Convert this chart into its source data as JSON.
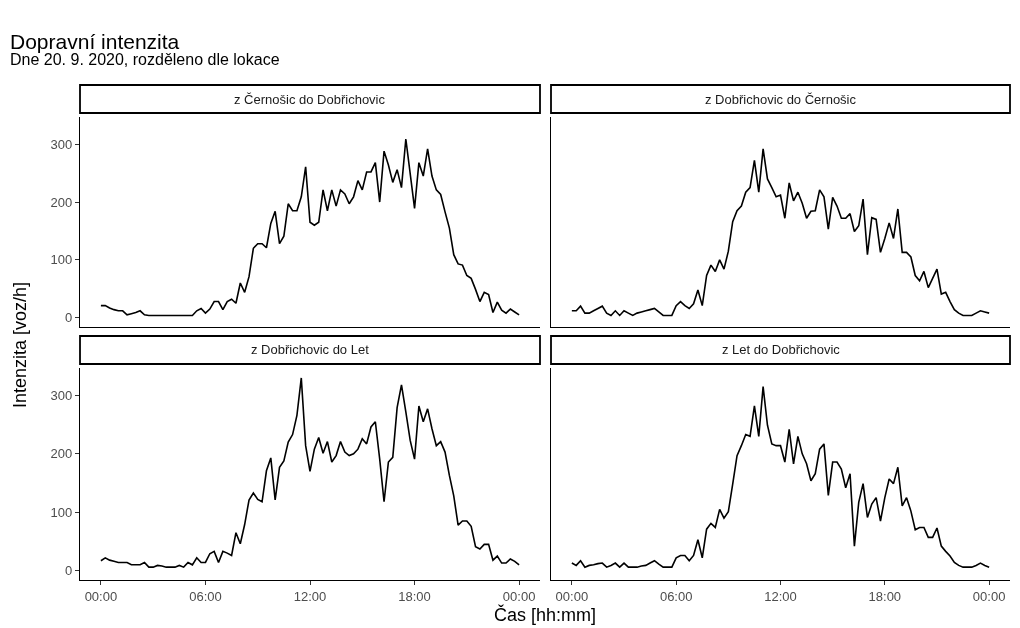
{
  "chart_data": [
    {
      "type": "other",
      "title": "Dopravní intenzita",
      "subtitle": "Dne 20. 9. 2020, rozděleno dle lokace",
      "xlabel": "Čas [hh:mm]",
      "ylabel": "Intenzita [voz/h]"
    },
    {
      "type": "line",
      "title": "z Černošic do Dobřichovic",
      "tick_labels": "y",
      "xlim": [
        -1.2,
        25.2
      ],
      "ylim": [
        -16,
        347
      ],
      "xticks": [
        {
          "value": 0,
          "label": null
        },
        {
          "value": 6,
          "label": null
        },
        {
          "value": 12,
          "label": null
        },
        {
          "value": 18,
          "label": null
        },
        {
          "value": 24,
          "label": null
        }
      ],
      "yticks": [
        0,
        100,
        200,
        300
      ],
      "x": [
        0,
        0.25,
        0.5,
        0.75,
        1,
        1.25,
        1.5,
        1.75,
        2,
        2.25,
        2.5,
        2.75,
        3,
        3.25,
        3.5,
        3.75,
        4,
        4.25,
        4.5,
        4.75,
        5,
        5.25,
        5.5,
        5.75,
        6,
        6.25,
        6.5,
        6.75,
        7,
        7.25,
        7.5,
        7.75,
        8,
        8.25,
        8.5,
        8.75,
        9,
        9.25,
        9.5,
        9.75,
        10,
        10.25,
        10.5,
        10.75,
        11,
        11.25,
        11.5,
        11.75,
        12,
        12.25,
        12.5,
        12.75,
        13,
        13.25,
        13.5,
        13.75,
        14,
        14.25,
        14.5,
        14.75,
        15,
        15.25,
        15.5,
        15.75,
        16,
        16.25,
        16.5,
        16.75,
        17,
        17.25,
        17.5,
        17.75,
        18,
        18.25,
        18.5,
        18.75,
        19,
        19.25,
        19.5,
        19.75,
        20,
        20.25,
        20.5,
        20.75,
        21,
        21.25,
        21.5,
        21.75,
        22,
        22.25,
        22.5,
        22.75,
        23,
        23.25,
        23.5,
        23.75,
        24
      ],
      "series": [
        {
          "color": "#000000",
          "values": [
            21,
            21,
            17,
            14,
            12,
            12,
            5,
            7,
            9,
            12,
            5,
            4,
            4,
            4,
            4,
            4,
            4,
            4,
            4,
            4,
            4,
            4,
            12,
            16,
            8,
            15,
            28,
            28,
            14,
            28,
            32,
            25,
            60,
            44,
            71,
            120,
            128,
            128,
            121,
            163,
            184,
            128,
            141,
            197,
            185,
            185,
            209,
            261,
            165,
            160,
            165,
            221,
            185,
            221,
            193,
            221,
            214,
            197,
            209,
            237,
            221,
            252,
            252,
            268,
            200,
            288,
            264,
            234,
            256,
            225,
            309,
            249,
            189,
            268,
            245,
            292,
            245,
            221,
            213,
            183,
            155,
            109,
            93,
            91,
            73,
            68,
            49,
            28,
            44,
            40,
            9,
            27,
            13,
            8,
            15,
            10,
            5
          ]
        }
      ]
    },
    {
      "type": "line",
      "title": "z Dobřichovic do Černošic",
      "tick_labels": false,
      "xlim": [
        -1.2,
        25.2
      ],
      "ylim": [
        -16,
        347
      ],
      "xticks": [
        {
          "value": 0,
          "label": null
        },
        {
          "value": 6,
          "label": null
        },
        {
          "value": 12,
          "label": null
        },
        {
          "value": 18,
          "label": null
        },
        {
          "value": 24,
          "label": null
        }
      ],
      "yticks": [
        0,
        100,
        200,
        300
      ],
      "x": [
        0,
        0.25,
        0.5,
        0.75,
        1,
        1.25,
        1.5,
        1.75,
        2,
        2.25,
        2.5,
        2.75,
        3,
        3.25,
        3.5,
        3.75,
        4,
        4.25,
        4.5,
        4.75,
        5,
        5.25,
        5.5,
        5.75,
        6,
        6.25,
        6.5,
        6.75,
        7,
        7.25,
        7.5,
        7.75,
        8,
        8.25,
        8.5,
        8.75,
        9,
        9.25,
        9.5,
        9.75,
        10,
        10.25,
        10.5,
        10.75,
        11,
        11.25,
        11.5,
        11.75,
        12,
        12.25,
        12.5,
        12.75,
        13,
        13.25,
        13.5,
        13.75,
        14,
        14.25,
        14.5,
        14.75,
        15,
        15.25,
        15.5,
        15.75,
        16,
        16.25,
        16.5,
        16.75,
        17,
        17.25,
        17.5,
        17.75,
        18,
        18.25,
        18.5,
        18.75,
        19,
        19.25,
        19.5,
        19.75,
        20,
        20.25,
        20.5,
        20.75,
        21,
        21.25,
        21.5,
        21.75,
        22,
        22.25,
        22.5,
        22.75,
        23,
        23.25,
        23.5,
        23.75,
        24
      ],
      "series": [
        {
          "color": "#000000",
          "values": [
            12,
            12,
            20,
            8,
            8,
            12,
            16,
            20,
            8,
            4,
            12,
            4,
            12,
            8,
            4,
            8,
            10,
            12,
            14,
            16,
            10,
            4,
            4,
            4,
            21,
            28,
            21,
            16,
            24,
            48,
            21,
            73,
            91,
            80,
            100,
            84,
            115,
            166,
            185,
            193,
            217,
            225,
            272,
            217,
            292,
            240,
            225,
            209,
            212,
            172,
            233,
            202,
            217,
            198,
            172,
            184,
            185,
            221,
            209,
            153,
            208,
            193,
            172,
            172,
            180,
            149,
            159,
            205,
            109,
            173,
            170,
            113,
            137,
            164,
            137,
            188,
            113,
            113,
            105,
            73,
            64,
            80,
            52,
            68,
            84,
            41,
            44,
            28,
            14,
            8,
            4,
            4,
            4,
            8,
            12,
            10,
            8
          ]
        }
      ]
    },
    {
      "type": "line",
      "title": "z Dobřichovic do Let",
      "xlim": [
        -1.2,
        25.2
      ],
      "ylim": [
        -16,
        347
      ],
      "xticks": [
        {
          "value": 0,
          "label": "00:00"
        },
        {
          "value": 6,
          "label": "06:00"
        },
        {
          "value": 12,
          "label": "12:00"
        },
        {
          "value": 18,
          "label": "18:00"
        },
        {
          "value": 24,
          "label": "00:00"
        }
      ],
      "yticks": [
        0,
        100,
        200,
        300
      ],
      "x": [
        0,
        0.25,
        0.5,
        0.75,
        1,
        1.25,
        1.5,
        1.75,
        2,
        2.25,
        2.5,
        2.75,
        3,
        3.25,
        3.5,
        3.75,
        4,
        4.25,
        4.5,
        4.75,
        5,
        5.25,
        5.5,
        5.75,
        6,
        6.25,
        6.5,
        6.75,
        7,
        7.25,
        7.5,
        7.75,
        8,
        8.25,
        8.5,
        8.75,
        9,
        9.25,
        9.5,
        9.75,
        10,
        10.25,
        10.5,
        10.75,
        11,
        11.25,
        11.5,
        11.75,
        12,
        12.25,
        12.5,
        12.75,
        13,
        13.25,
        13.5,
        13.75,
        14,
        14.25,
        14.5,
        14.75,
        15,
        15.25,
        15.5,
        15.75,
        16,
        16.25,
        16.5,
        16.75,
        17,
        17.25,
        17.5,
        17.75,
        18,
        18.25,
        18.5,
        18.75,
        19,
        19.25,
        19.5,
        19.75,
        20,
        20.25,
        20.5,
        20.75,
        21,
        21.25,
        21.5,
        21.75,
        22,
        22.25,
        22.5,
        22.75,
        23,
        23.25,
        23.5,
        23.75,
        24
      ],
      "series": [
        {
          "color": "#000000",
          "values": [
            17,
            22,
            18,
            16,
            14,
            14,
            14,
            10,
            10,
            10,
            14,
            6,
            6,
            9,
            8,
            6,
            6,
            6,
            9,
            6,
            14,
            10,
            22,
            14,
            14,
            29,
            33,
            14,
            33,
            30,
            26,
            65,
            46,
            79,
            121,
            133,
            122,
            118,
            171,
            193,
            121,
            177,
            188,
            220,
            233,
            266,
            330,
            214,
            170,
            208,
            228,
            201,
            221,
            186,
            197,
            221,
            203,
            197,
            200,
            208,
            226,
            217,
            246,
            255,
            191,
            118,
            186,
            194,
            279,
            318,
            272,
            223,
            191,
            282,
            255,
            277,
            243,
            214,
            221,
            203,
            163,
            128,
            78,
            85,
            85,
            76,
            41,
            37,
            45,
            45,
            18,
            25,
            13,
            13,
            20,
            16,
            10
          ]
        }
      ]
    },
    {
      "type": "line",
      "title": "z Let do Dobřichovic",
      "tick_labels": "x",
      "xlim": [
        -1.2,
        25.2
      ],
      "ylim": [
        -16,
        347
      ],
      "xticks": [
        {
          "value": 0,
          "label": "00:00"
        },
        {
          "value": 6,
          "label": "06:00"
        },
        {
          "value": 12,
          "label": "12:00"
        },
        {
          "value": 18,
          "label": "18:00"
        },
        {
          "value": 24,
          "label": "00:00"
        }
      ],
      "yticks": [
        0,
        100,
        200,
        300
      ],
      "x": [
        0,
        0.25,
        0.5,
        0.75,
        1,
        1.25,
        1.5,
        1.75,
        2,
        2.25,
        2.5,
        2.75,
        3,
        3.25,
        3.5,
        3.75,
        4,
        4.25,
        4.5,
        4.75,
        5,
        5.25,
        5.5,
        5.75,
        6,
        6.25,
        6.5,
        6.75,
        7,
        7.25,
        7.5,
        7.75,
        8,
        8.25,
        8.5,
        8.75,
        9,
        9.25,
        9.5,
        9.75,
        10,
        10.25,
        10.5,
        10.75,
        11,
        11.25,
        11.5,
        11.75,
        12,
        12.25,
        12.5,
        12.75,
        13,
        13.25,
        13.5,
        13.75,
        14,
        14.25,
        14.5,
        14.75,
        15,
        15.25,
        15.5,
        15.75,
        16,
        16.25,
        16.5,
        16.75,
        17,
        17.25,
        17.5,
        17.75,
        18,
        18.25,
        18.5,
        18.75,
        19,
        19.25,
        19.5,
        19.75,
        20,
        20.25,
        20.5,
        20.75,
        21,
        21.25,
        21.5,
        21.75,
        22,
        22.25,
        22.5,
        22.75,
        23,
        23.25,
        23.5,
        23.75,
        24
      ],
      "series": [
        {
          "color": "#000000",
          "values": [
            13,
            9,
            17,
            6,
            9,
            10,
            12,
            13,
            6,
            9,
            13,
            6,
            13,
            6,
            6,
            6,
            8,
            9,
            13,
            17,
            11,
            6,
            6,
            6,
            22,
            26,
            26,
            17,
            26,
            53,
            22,
            71,
            81,
            74,
            105,
            90,
            101,
            148,
            197,
            214,
            233,
            230,
            282,
            230,
            315,
            249,
            217,
            214,
            214,
            186,
            242,
            183,
            230,
            200,
            183,
            154,
            166,
            208,
            217,
            129,
            186,
            186,
            174,
            142,
            166,
            42,
            117,
            149,
            91,
            114,
            125,
            85,
            125,
            157,
            149,
            177,
            111,
            125,
            102,
            70,
            74,
            74,
            57,
            57,
            73,
            42,
            33,
            25,
            14,
            9,
            6,
            6,
            6,
            9,
            13,
            9,
            6
          ]
        }
      ]
    }
  ]
}
